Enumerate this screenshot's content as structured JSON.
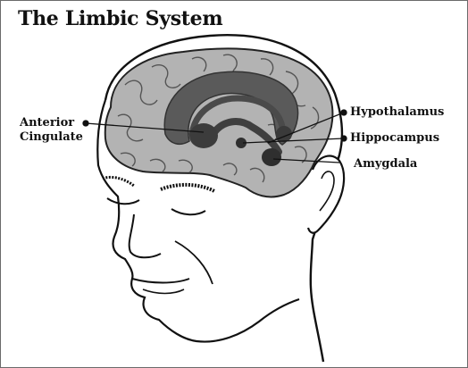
{
  "title": "The Limbic System",
  "labels": {
    "anterior_cingulate": [
      "Anterior",
      "Cingulate"
    ],
    "hypothalamus": "Hypothalamus",
    "hippocampus": "Hippocampus",
    "amygdala": "Amygdala"
  },
  "colors": {
    "brain_fill": "#b3b3b3",
    "limbic_fill": "#5a5a5a",
    "outline": "#111111"
  }
}
